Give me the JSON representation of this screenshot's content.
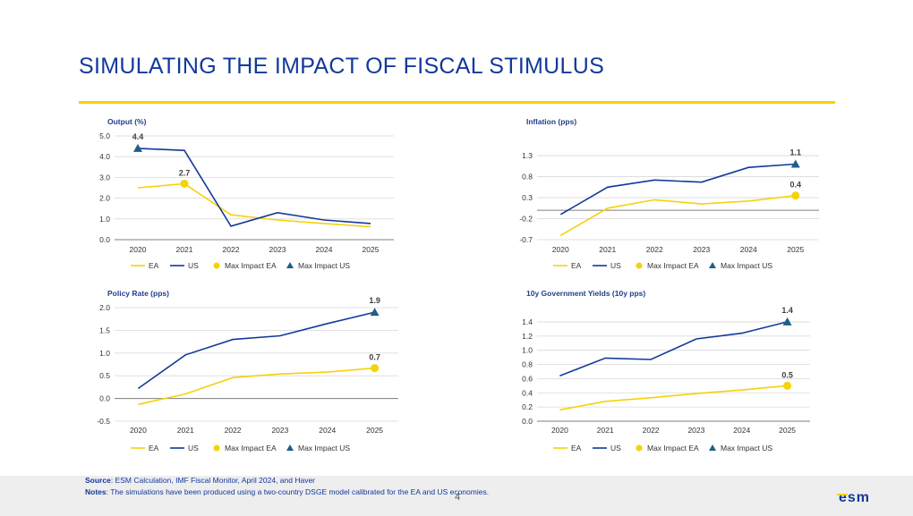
{
  "title": "SIMULATING THE IMPACT OF FISCAL STIMULUS",
  "page_number": "4",
  "footer": {
    "source_label": "Source",
    "source_text": ": ESM Calculation, IMF Fiscal Monitor, April 2024, and Haver",
    "notes_label": "Notes",
    "notes_text": ": The simulations have been produced using a two-country DSGE model calibrated for the EA and US economies."
  },
  "logo_text": "esm",
  "colors": {
    "ea": "#f5d20a",
    "us": "#12399a",
    "max_us": "#1f5f86",
    "axis": "#888888",
    "grid": "#d9d9d9"
  },
  "legend": [
    "EA",
    "US",
    "Max Impact EA",
    "Max Impact US"
  ],
  "chart_data": [
    {
      "type": "line",
      "title": "Output (%)",
      "categories": [
        "2020",
        "2021",
        "2022",
        "2023",
        "2024",
        "2025"
      ],
      "series": [
        {
          "name": "EA",
          "values": [
            2.5,
            2.7,
            1.2,
            0.95,
            0.78,
            0.62
          ]
        },
        {
          "name": "US",
          "values": [
            4.4,
            4.3,
            0.65,
            1.3,
            0.95,
            0.78
          ]
        }
      ],
      "ylim": [
        0,
        5
      ],
      "yticks": [
        "0.0",
        "1.0",
        "2.0",
        "3.0",
        "4.0",
        "5.0"
      ],
      "grid": true,
      "max_impact": {
        "ea": {
          "index": 1,
          "value": 2.7,
          "label": "2.7"
        },
        "us": {
          "index": 0,
          "value": 4.4,
          "label": "4.4"
        }
      }
    },
    {
      "type": "line",
      "title": "Inflation (pps)",
      "categories": [
        "2020",
        "2021",
        "2022",
        "2023",
        "2024",
        "2025"
      ],
      "series": [
        {
          "name": "EA",
          "values": [
            -0.6,
            0.05,
            0.25,
            0.15,
            0.22,
            0.35
          ]
        },
        {
          "name": "US",
          "values": [
            -0.1,
            0.55,
            0.72,
            0.67,
            1.02,
            1.1
          ]
        }
      ],
      "ylim": [
        -0.7,
        1.6
      ],
      "yticks": [
        "-0.7",
        "-0.2",
        "0.3",
        "0.8",
        "1.3"
      ],
      "grid": true,
      "max_impact": {
        "ea": {
          "index": 5,
          "value": 0.35,
          "label": "0.4"
        },
        "us": {
          "index": 5,
          "value": 1.1,
          "label": "1.1"
        }
      }
    },
    {
      "type": "line",
      "title": "Policy Rate (pps)",
      "categories": [
        "2020",
        "2021",
        "2022",
        "2023",
        "2024",
        "2025"
      ],
      "series": [
        {
          "name": "EA",
          "values": [
            -0.13,
            0.1,
            0.46,
            0.54,
            0.58,
            0.67
          ]
        },
        {
          "name": "US",
          "values": [
            0.22,
            0.96,
            1.3,
            1.38,
            1.65,
            1.9
          ]
        }
      ],
      "ylim": [
        -0.5,
        2.0
      ],
      "yticks": [
        "-0.5",
        "0.0",
        "0.5",
        "1.0",
        "1.5",
        "2.0"
      ],
      "grid": true,
      "max_impact": {
        "ea": {
          "index": 5,
          "value": 0.67,
          "label": "0.7"
        },
        "us": {
          "index": 5,
          "value": 1.9,
          "label": "1.9"
        }
      }
    },
    {
      "type": "line",
      "title": "10y Government Yields (10y pps)",
      "categories": [
        "2020",
        "2021",
        "2022",
        "2023",
        "2024",
        "2025"
      ],
      "series": [
        {
          "name": "EA",
          "values": [
            0.16,
            0.28,
            0.33,
            0.39,
            0.44,
            0.5
          ]
        },
        {
          "name": "US",
          "values": [
            0.64,
            0.89,
            0.87,
            1.16,
            1.24,
            1.4
          ]
        }
      ],
      "ylim": [
        0,
        1.5
      ],
      "yticks": [
        "0.0",
        "0.2",
        "0.4",
        "0.6",
        "0.8",
        "1.0",
        "1.2",
        "1.4"
      ],
      "grid": true,
      "max_impact": {
        "ea": {
          "index": 5,
          "value": 0.5,
          "label": "0.5"
        },
        "us": {
          "index": 5,
          "value": 1.4,
          "label": "1.4"
        }
      }
    }
  ]
}
